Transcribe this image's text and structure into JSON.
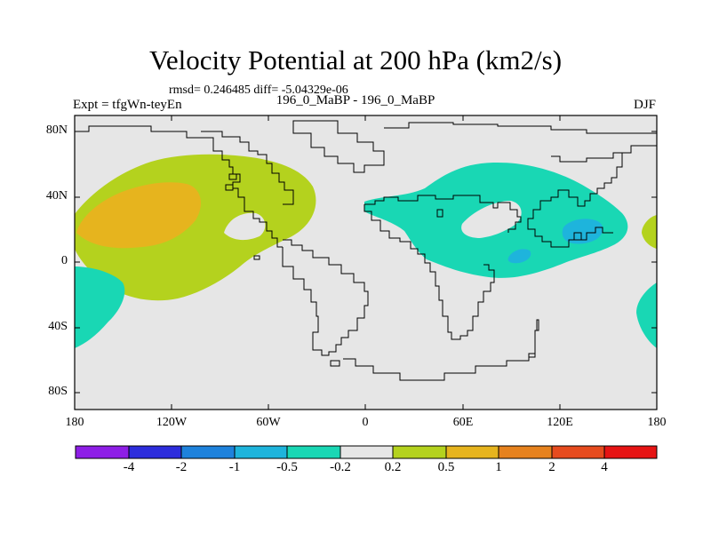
{
  "title": "Velocity Potential at 200 hPa (km2/s)",
  "stats": "rmsd= 0.246485 diff= -5.04329e-06",
  "left_label": "Expt = tfgWn-teyEn",
  "center_label": "196_0_MaBP - 196_0_MaBP",
  "right_label": "DJF",
  "map": {
    "lon_range": [
      -180,
      180
    ],
    "lat_range": [
      -90,
      90
    ],
    "x_ticks": [
      {
        "value": -180,
        "label": "180"
      },
      {
        "value": -120,
        "label": "120W"
      },
      {
        "value": -60,
        "label": "60W"
      },
      {
        "value": 0,
        "label": "0"
      },
      {
        "value": 60,
        "label": "60E"
      },
      {
        "value": 120,
        "label": "120E"
      },
      {
        "value": 180,
        "label": "180"
      }
    ],
    "y_ticks": [
      {
        "value": 80,
        "label": "80N"
      },
      {
        "value": 40,
        "label": "40N"
      },
      {
        "value": 0,
        "label": "0"
      },
      {
        "value": -40,
        "label": "40S"
      },
      {
        "value": -80,
        "label": "80S"
      }
    ],
    "background_color": "#e6e6e6"
  },
  "colorbar": {
    "colors": [
      "#8e1ee6",
      "#2d2ddc",
      "#1e82dc",
      "#1eb4dc",
      "#19d7b4",
      "#e6e6e6",
      "#b4d21e",
      "#e6b41e",
      "#e6821e",
      "#e64b1e",
      "#e61414"
    ],
    "labels": [
      "-4",
      "-2",
      "-1",
      "-0.5",
      "-0.2",
      "0.2",
      "0.5",
      "1",
      "2",
      "4"
    ]
  }
}
